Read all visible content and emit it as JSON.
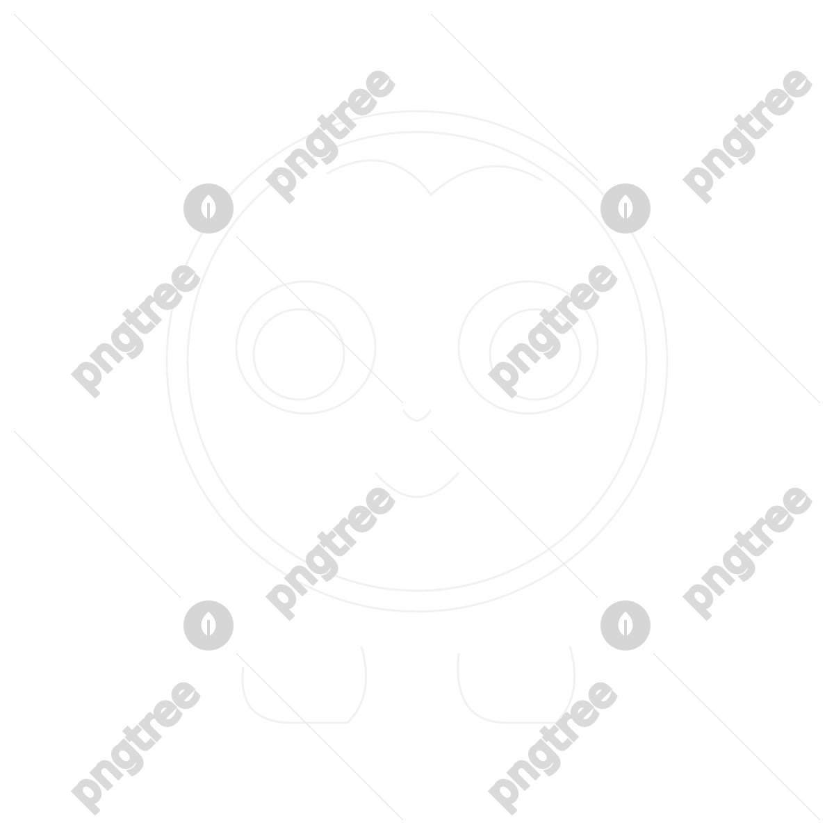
{
  "watermark": {
    "text": "pngtree",
    "text_color": "#dadada",
    "logo_color": "#d6d6d6",
    "diagonal_line_color": "#e6e6e6",
    "logo_icon": "pngtree-leaf-logo-icon"
  },
  "artwork": {
    "subject": "faint line-art illustration",
    "line_color": "#f2f2f2"
  },
  "colors": {
    "background": "#ffffff"
  }
}
